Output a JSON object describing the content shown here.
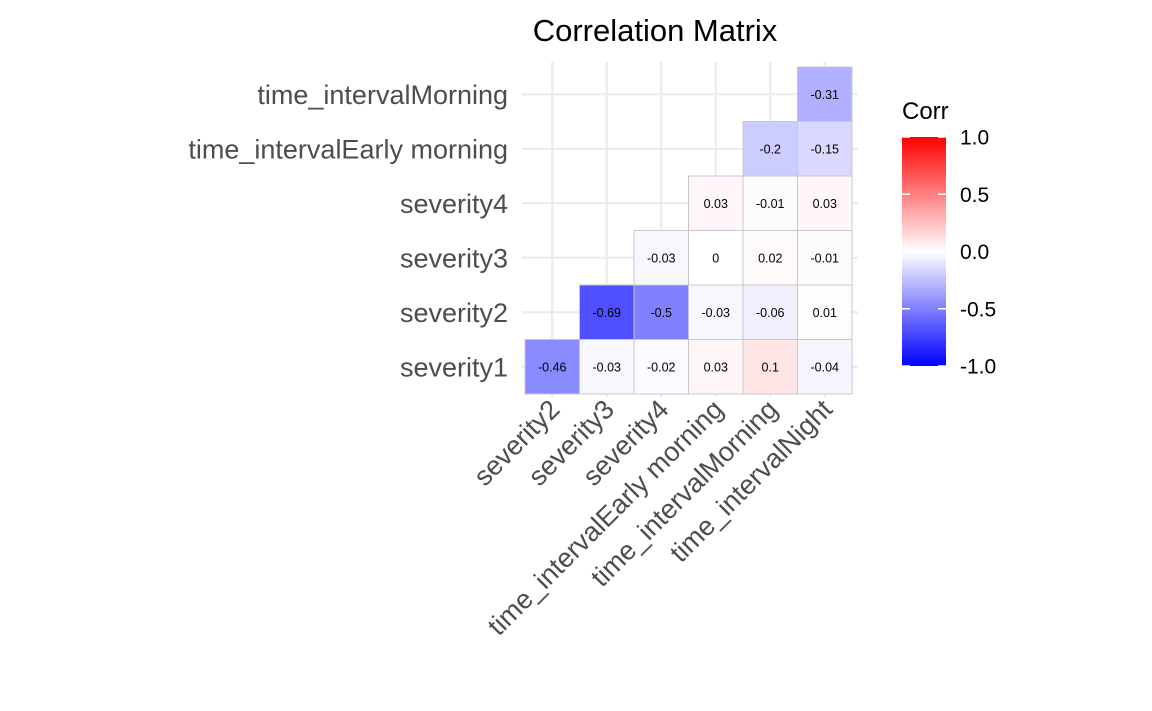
{
  "chart_data": {
    "type": "heatmap",
    "title": "Correlation Matrix",
    "x_labels": [
      "severity2",
      "severity3",
      "severity4",
      "time_intervalEarly morning",
      "time_intervalMorning",
      "time_intervalNight"
    ],
    "y_labels": [
      "severity1",
      "severity2",
      "severity3",
      "severity4",
      "time_intervalEarly morning",
      "time_intervalMorning"
    ],
    "cells": [
      {
        "x": "severity2",
        "y": "severity1",
        "value": -0.46,
        "label": "-0.46"
      },
      {
        "x": "severity3",
        "y": "severity1",
        "value": -0.03,
        "label": "-0.03"
      },
      {
        "x": "severity4",
        "y": "severity1",
        "value": -0.02,
        "label": "-0.02"
      },
      {
        "x": "time_intervalEarly morning",
        "y": "severity1",
        "value": 0.03,
        "label": "0.03"
      },
      {
        "x": "time_intervalMorning",
        "y": "severity1",
        "value": 0.1,
        "label": "0.1"
      },
      {
        "x": "time_intervalNight",
        "y": "severity1",
        "value": -0.04,
        "label": "-0.04"
      },
      {
        "x": "severity3",
        "y": "severity2",
        "value": -0.69,
        "label": "-0.69"
      },
      {
        "x": "severity4",
        "y": "severity2",
        "value": -0.5,
        "label": "-0.5"
      },
      {
        "x": "time_intervalEarly morning",
        "y": "severity2",
        "value": -0.03,
        "label": "-0.03"
      },
      {
        "x": "time_intervalMorning",
        "y": "severity2",
        "value": -0.06,
        "label": "-0.06"
      },
      {
        "x": "time_intervalNight",
        "y": "severity2",
        "value": 0.01,
        "label": "0.01"
      },
      {
        "x": "severity4",
        "y": "severity3",
        "value": -0.03,
        "label": "-0.03"
      },
      {
        "x": "time_intervalEarly morning",
        "y": "severity3",
        "value": 0,
        "label": "0"
      },
      {
        "x": "time_intervalMorning",
        "y": "severity3",
        "value": 0.02,
        "label": "0.02"
      },
      {
        "x": "time_intervalNight",
        "y": "severity3",
        "value": -0.01,
        "label": "-0.01"
      },
      {
        "x": "time_intervalEarly morning",
        "y": "severity4",
        "value": 0.03,
        "label": "0.03"
      },
      {
        "x": "time_intervalMorning",
        "y": "severity4",
        "value": -0.01,
        "label": "-0.01"
      },
      {
        "x": "time_intervalNight",
        "y": "severity4",
        "value": 0.03,
        "label": "0.03"
      },
      {
        "x": "time_intervalMorning",
        "y": "time_intervalEarly morning",
        "value": -0.2,
        "label": "-0.2"
      },
      {
        "x": "time_intervalNight",
        "y": "time_intervalEarly morning",
        "value": -0.15,
        "label": "-0.15"
      },
      {
        "x": "time_intervalNight",
        "y": "time_intervalMorning",
        "value": -0.31,
        "label": "-0.31"
      }
    ],
    "legend": {
      "title": "Corr",
      "placement": "right",
      "ticks": [
        1.0,
        0.5,
        0.0,
        -0.5,
        -1.0
      ],
      "tick_labels": [
        "1.0",
        "0.5",
        "0.0",
        "-0.5",
        "-1.0"
      ],
      "range": [
        -1,
        1
      ]
    },
    "colors": {
      "low": "#0000ff",
      "mid": "#ffffff",
      "high": "#ff0000",
      "cell_border": "#c8c8c8",
      "grid": "#ebebeb",
      "tick_text": "#4d4d4d"
    },
    "grid": true
  }
}
